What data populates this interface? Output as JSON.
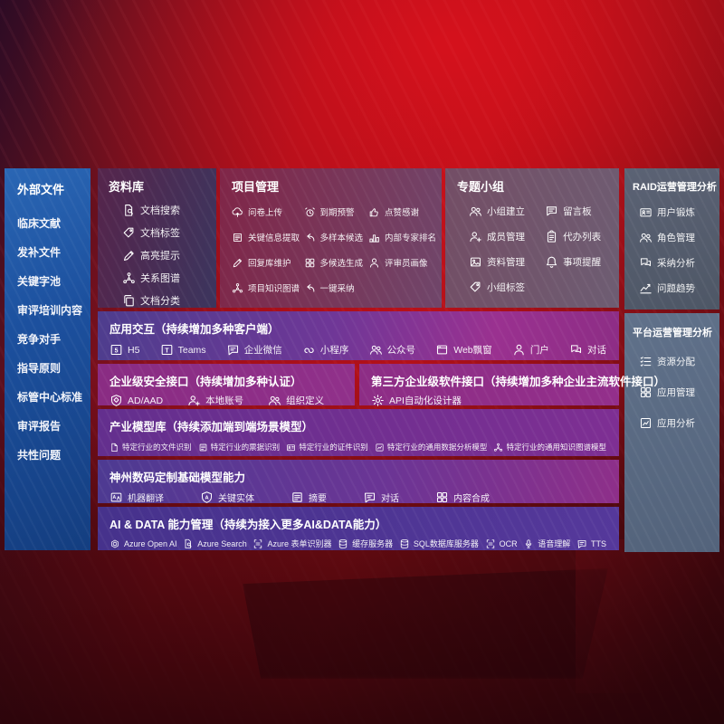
{
  "colors": {
    "background_red": "#b41119",
    "background_dark_maroon": "#4d080e",
    "left_panel_blue": "#1c509e",
    "repository_panel": "#50305e",
    "project_panel": "#73294e",
    "groups_panel": "#6e5a70",
    "raid_panel": "#596274",
    "platform_panel": "#5d7089",
    "band_violet": "#4e3d8e",
    "band_magenta": "#96308c",
    "band_purple": "#6e2d8a",
    "band_indigo": "#4b3794",
    "text": "#ffffff"
  },
  "left_sidebar": {
    "title": "外部文件",
    "items": [
      "临床文献",
      "发补文件",
      "关键字池",
      "审评培训内容",
      "竞争对手",
      "指导原则",
      "标管中心标准",
      "审评报告",
      "共性问题"
    ]
  },
  "repository": {
    "title": "资料库",
    "items": [
      {
        "icon": "doc-search",
        "label": "文档搜索"
      },
      {
        "icon": "tag",
        "label": "文档标签"
      },
      {
        "icon": "pen",
        "label": "高亮提示"
      },
      {
        "icon": "network",
        "label": "关系图谱"
      },
      {
        "icon": "docs",
        "label": "文档分类"
      }
    ]
  },
  "project": {
    "title": "项目管理",
    "items": [
      {
        "icon": "cloud-upload",
        "label": "问卷上传"
      },
      {
        "icon": "alarm",
        "label": "到期预警"
      },
      {
        "icon": "thumb-up",
        "label": "点赞感谢"
      },
      {
        "icon": "doc-extract",
        "label": "关键信息提取"
      },
      {
        "icon": "arrow-back",
        "label": "多样本候选"
      },
      {
        "icon": "rank",
        "label": "内部专家排名"
      },
      {
        "icon": "pen",
        "label": "回复库维护"
      },
      {
        "icon": "grid",
        "label": "多候选生成"
      },
      {
        "icon": "person",
        "label": "评审员画像"
      },
      {
        "icon": "network",
        "label": "项目知识图谱"
      },
      {
        "icon": "arrow-back",
        "label": "一键采纳"
      }
    ]
  },
  "groups": {
    "title": "专题小组",
    "items": [
      {
        "icon": "people",
        "label": "小组建立"
      },
      {
        "icon": "bbs",
        "label": "留言板"
      },
      {
        "icon": "person-add",
        "label": "成员管理"
      },
      {
        "icon": "clipboard",
        "label": "代办列表"
      },
      {
        "icon": "image",
        "label": "资料管理"
      },
      {
        "icon": "bell",
        "label": "事项提醒"
      },
      {
        "icon": "tag",
        "label": "小组标签"
      }
    ]
  },
  "raid": {
    "title": "RAID运营管理分析",
    "items": [
      {
        "icon": "id-card",
        "label": "用户锻炼"
      },
      {
        "icon": "people",
        "label": "角色管理"
      },
      {
        "icon": "chat-double",
        "label": "采纳分析"
      },
      {
        "icon": "trend",
        "label": "问题趋势"
      }
    ]
  },
  "platform": {
    "title": "平台运营管理分析",
    "items": [
      {
        "icon": "list",
        "label": "资源分配"
      },
      {
        "icon": "grid",
        "label": "应用管理"
      },
      {
        "icon": "chart-box",
        "label": "应用分析"
      }
    ]
  },
  "interaction": {
    "title": "应用交互（持续增加多种客户端）",
    "items": [
      {
        "icon": "h5",
        "label": "H5"
      },
      {
        "icon": "teams",
        "label": "Teams"
      },
      {
        "icon": "chat",
        "label": "企业微信"
      },
      {
        "icon": "s-curve",
        "label": "小程序"
      },
      {
        "icon": "people",
        "label": "公众号"
      },
      {
        "icon": "window",
        "label": "Web飘窗"
      },
      {
        "icon": "person",
        "label": "门户"
      },
      {
        "icon": "chat-double",
        "label": "对话"
      }
    ]
  },
  "security": {
    "title": "企业级安全接口（持续增加多种认证）",
    "items": [
      {
        "icon": "shield",
        "label": "AD/AAD"
      },
      {
        "icon": "person-add",
        "label": "本地账号"
      },
      {
        "icon": "people",
        "label": "组织定义"
      }
    ]
  },
  "third_party": {
    "title": "第三方企业级软件接口（持续增加多种企业主流软件接口）",
    "items": [
      {
        "icon": "gear",
        "label": "API自动化设计器"
      }
    ]
  },
  "industry_models": {
    "title": "产业模型库（持续添加端到端场景模型）",
    "items": [
      {
        "icon": "doc",
        "label": "特定行业的文件识别"
      },
      {
        "icon": "doc-extract",
        "label": "特定行业的票据识别"
      },
      {
        "icon": "id-card",
        "label": "特定行业的证件识别"
      },
      {
        "icon": "chart-box",
        "label": "特定行业的通用数据分析模型"
      },
      {
        "icon": "network",
        "label": "特定行业的通用知识图谱模型"
      }
    ]
  },
  "base_models": {
    "title": "神州数码定制基础模型能力",
    "items": [
      {
        "icon": "translate",
        "label": "机器翻译"
      },
      {
        "icon": "shield-a",
        "label": "关键实体"
      },
      {
        "icon": "doc-extract",
        "label": "摘要"
      },
      {
        "icon": "chat",
        "label": "对话"
      },
      {
        "icon": "grid",
        "label": "内容合成"
      }
    ]
  },
  "ai_data": {
    "title": "AI & DATA 能力管理（持续为接入更多AI&DATA能力）",
    "items": [
      {
        "icon": "openai",
        "label": "Azure Open AI"
      },
      {
        "icon": "doc-search",
        "label": "Azure Search"
      },
      {
        "icon": "scan",
        "label": "Azure 表单识别器"
      },
      {
        "icon": "db",
        "label": "缓存服务器"
      },
      {
        "icon": "db",
        "label": "SQL数据库服务器"
      },
      {
        "icon": "scan",
        "label": "OCR"
      },
      {
        "icon": "mic",
        "label": "语音理解"
      },
      {
        "icon": "chat",
        "label": "TTS"
      }
    ]
  }
}
